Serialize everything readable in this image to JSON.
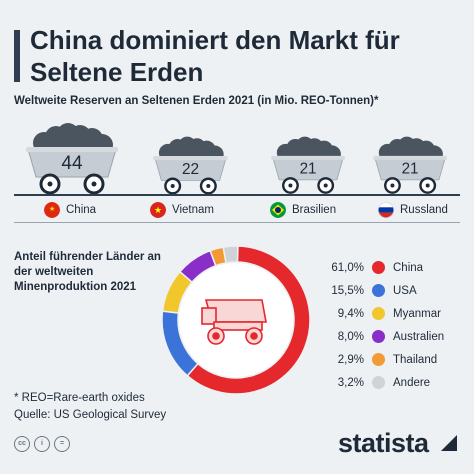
{
  "header": {
    "title": "China dominiert den Markt für Seltene Erden",
    "subtitle": "Weltweite Reserven an Seltenen Erden 2021 (in Mio. REO-Tonnen)*"
  },
  "reserves": [
    {
      "country": "China",
      "value": "44",
      "flag": "china-flag-icon"
    },
    {
      "country": "Vietnam",
      "value": "22",
      "flag": "vietnam-flag-icon"
    },
    {
      "country": "Brasilien",
      "value": "21",
      "flag": "brazil-flag-icon"
    },
    {
      "country": "Russland",
      "value": "21",
      "flag": "russia-flag-icon"
    }
  ],
  "share": {
    "title": "Anteil führender Länder an der weltweiten Minenproduktion 2021"
  },
  "chart_data": [
    {
      "type": "bar",
      "title": "Weltweite Reserven an Seltenen Erden 2021 (in Mio. REO-Tonnen)*",
      "categories": [
        "China",
        "Vietnam",
        "Brasilien",
        "Russland"
      ],
      "values": [
        44,
        22,
        21,
        21
      ]
    },
    {
      "type": "pie",
      "title": "Anteil führender Länder an der weltweiten Minenproduktion 2021",
      "categories": [
        "China",
        "USA",
        "Myanmar",
        "Australien",
        "Thailand",
        "Andere"
      ],
      "values": [
        61.0,
        15.5,
        9.4,
        8.0,
        2.9,
        3.2
      ],
      "labels": [
        "61,0%",
        "15,5%",
        "9,4%",
        "8,0%",
        "2,9%",
        "3,2%"
      ],
      "colors": [
        "#e4282c",
        "#3b73d9",
        "#f2c72c",
        "#8a2ec9",
        "#f39a34",
        "#cfd3d7"
      ]
    }
  ],
  "footer": {
    "note": "* REO=Rare-earth oxides",
    "source": "Quelle: US Geological Survey",
    "brand": "statista",
    "icons": [
      "cc-icon",
      "by-icon",
      "equals-icon"
    ]
  }
}
